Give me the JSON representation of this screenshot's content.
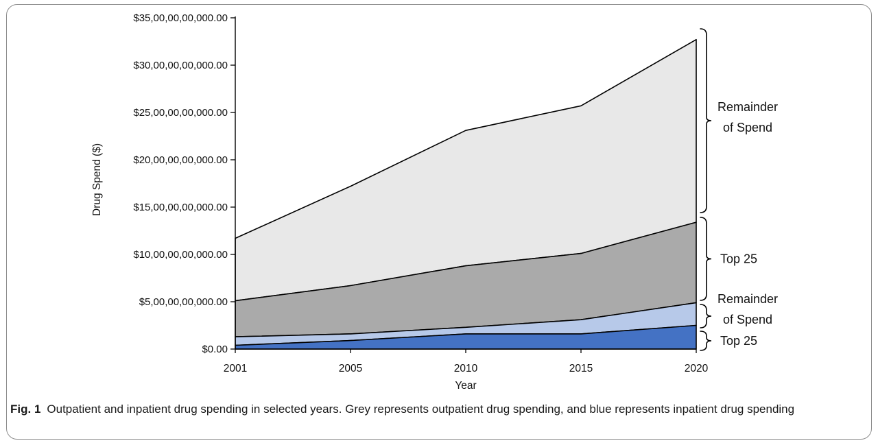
{
  "figure": {
    "caption_label": "Fig. 1",
    "caption_text": "Outpatient and inpatient drug spending in selected years. Grey represents outpatient drug spending, and blue represents inpatient drug spending"
  },
  "chart_data": {
    "type": "area",
    "stacked": true,
    "title": "",
    "xlabel": "Year",
    "ylabel": "Drug Spend ($)",
    "categories": [
      "2001",
      "2005",
      "2010",
      "2015",
      "2020"
    ],
    "x_spacing": "categorical-even",
    "grid": false,
    "legend": "right-side brace annotations",
    "ylim_usd": [
      0,
      35000000000
    ],
    "y_tick_step_usd": 5000000000,
    "y_tick_labels": [
      "$0.00",
      "$5,00,00,00,000.00",
      "$10,00,00,00,000.00",
      "$15,00,00,00,000.00",
      "$20,00,00,00,000.00",
      "$25,00,00,00,000.00",
      "$30,00,00,00,000.00",
      "$35,00,00,00,000.00"
    ],
    "series": [
      {
        "id": "inpatient_top25",
        "name": "Top 25 (inpatient, blue)",
        "color": "#4472C4",
        "values_billion_usd": [
          0.4,
          0.9,
          1.6,
          1.6,
          2.5
        ]
      },
      {
        "id": "inpatient_remainder",
        "name": "Remainder of Spend (inpatient, blue)",
        "color": "#B7C9E9",
        "values_billion_usd": [
          0.9,
          0.7,
          0.7,
          1.5,
          2.4
        ]
      },
      {
        "id": "outpatient_top25",
        "name": "Top 25 (outpatient, grey)",
        "color": "#AAAAAA",
        "values_billion_usd": [
          3.8,
          5.1,
          6.5,
          7.0,
          8.5
        ]
      },
      {
        "id": "outpatient_remainder",
        "name": "Remainder of Spend (outpatient, grey)",
        "color": "#E8E8E8",
        "values_billion_usd": [
          6.6,
          10.5,
          14.3,
          15.6,
          19.3
        ]
      }
    ],
    "annotations": [
      {
        "band": "outpatient_remainder",
        "lines": [
          "Remainder",
          "of Spend"
        ]
      },
      {
        "band": "outpatient_top25",
        "lines": [
          "Top 25"
        ]
      },
      {
        "band": "inpatient_remainder",
        "lines": [
          "Remainder",
          "of Spend"
        ]
      },
      {
        "band": "inpatient_top25",
        "lines": [
          "Top 25"
        ]
      }
    ],
    "outline_color": "#000000",
    "axis_color": "#000000"
  }
}
